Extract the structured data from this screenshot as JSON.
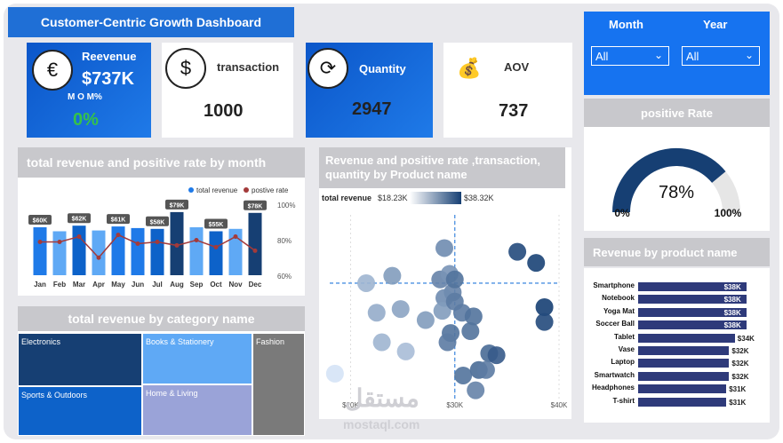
{
  "dashboard": {
    "title": "Customer-Centric Growth Dashboard"
  },
  "kpis": {
    "revenue": {
      "title": "Reevenue",
      "value": "$737K",
      "mom_label": "M O M%",
      "mom_value": "0%"
    },
    "transaction": {
      "title": "transaction",
      "value": "1000"
    },
    "quantity": {
      "title": "Quantity",
      "value": "2947"
    },
    "aov": {
      "title": "AOV",
      "value": "737"
    }
  },
  "slicers": {
    "month": {
      "label": "Month",
      "selected": "All"
    },
    "year": {
      "label": "Year",
      "selected": "All"
    }
  },
  "gauge": {
    "title": "positive Rate",
    "value_label": "78%",
    "min_label": "0%",
    "max_label": "100%",
    "value": 0.78
  },
  "colors": {
    "accent": "#1673f0",
    "dark_blue": "#163f73",
    "mid_blue": "#1f7ae8",
    "bar_navy": "#2e3a7a",
    "line_red": "#a33a3a",
    "green": "#35c24a"
  },
  "icons": {
    "revenue": "euro-icon",
    "transaction": "dollar-coin-icon",
    "quantity": "cycle-icon",
    "aov": "money-growth-icon"
  },
  "watermark": {
    "arabic": "مستقل",
    "latin": "mostaql.com"
  },
  "chart_data": [
    {
      "type": "bar",
      "title": "total revenue and positive rate by month",
      "categories": [
        "Jan",
        "Feb",
        "Mar",
        "Apr",
        "May",
        "Jun",
        "Jul",
        "Aug",
        "Sep",
        "Oct",
        "Nov",
        "Dec"
      ],
      "series": [
        {
          "name": "total revenue",
          "values": [
            60,
            55,
            62,
            56,
            61,
            59,
            58,
            79,
            60,
            55,
            58,
            78
          ],
          "data_labels": [
            "$60K",
            "",
            "$62K",
            "",
            "$61K",
            "",
            "$58K",
            "$79K",
            "",
            "$55K",
            "",
            "$78K"
          ]
        },
        {
          "name": "postive rate",
          "values": [
            79,
            79,
            82,
            70,
            83,
            78,
            79,
            77,
            80,
            76,
            82,
            74
          ]
        }
      ],
      "y2_ticks": [
        "100%",
        "80%",
        "60%"
      ],
      "ylim": [
        0,
        100
      ],
      "y2lim": [
        60,
        100
      ],
      "legend": "top-right"
    },
    {
      "type": "scatter",
      "title": "Revenue and positive rate ,transaction, quantity by Product name",
      "legend_title": "total revenue",
      "legend_min": "$18.23K",
      "legend_max": "$38.32K",
      "x_ticks": [
        "$20K",
        "$30K",
        "$40K"
      ],
      "xlim": [
        18,
        40
      ],
      "ylim": [
        0,
        100
      ],
      "points": [
        {
          "x": 18.5,
          "y": 14,
          "c": 18.3
        },
        {
          "x": 21.5,
          "y": 63,
          "c": 24
        },
        {
          "x": 24,
          "y": 67,
          "c": 27
        },
        {
          "x": 24.8,
          "y": 49,
          "c": 26
        },
        {
          "x": 22.5,
          "y": 47,
          "c": 25
        },
        {
          "x": 23,
          "y": 31,
          "c": 24
        },
        {
          "x": 25.3,
          "y": 26,
          "c": 23
        },
        {
          "x": 27.2,
          "y": 43,
          "c": 27
        },
        {
          "x": 29.8,
          "y": 58,
          "c": 30
        },
        {
          "x": 30.7,
          "y": 47,
          "c": 31
        },
        {
          "x": 28.6,
          "y": 65,
          "c": 30
        },
        {
          "x": 29,
          "y": 55,
          "c": 29
        },
        {
          "x": 29.5,
          "y": 68,
          "c": 28
        },
        {
          "x": 29,
          "y": 82,
          "c": 29
        },
        {
          "x": 28.8,
          "y": 48,
          "c": 27
        },
        {
          "x": 29.6,
          "y": 36,
          "c": 32
        },
        {
          "x": 29.3,
          "y": 31,
          "c": 31
        },
        {
          "x": 30,
          "y": 65,
          "c": 32
        },
        {
          "x": 30,
          "y": 53,
          "c": 31
        },
        {
          "x": 31.5,
          "y": 37,
          "c": 32
        },
        {
          "x": 31.8,
          "y": 45,
          "c": 32
        },
        {
          "x": 32.3,
          "y": 16,
          "c": 33
        },
        {
          "x": 30.8,
          "y": 13,
          "c": 32
        },
        {
          "x": 33.3,
          "y": 25,
          "c": 33
        },
        {
          "x": 34,
          "y": 24,
          "c": 35
        },
        {
          "x": 33,
          "y": 16,
          "c": 31
        },
        {
          "x": 32,
          "y": 5,
          "c": 30
        },
        {
          "x": 36,
          "y": 80,
          "c": 37
        },
        {
          "x": 37.8,
          "y": 74,
          "c": 38
        },
        {
          "x": 38.6,
          "y": 50,
          "c": 38.3
        },
        {
          "x": 38.6,
          "y": 42,
          "c": 37
        }
      ]
    },
    {
      "type": "table",
      "title": "total revenue by category name",
      "categories": [
        "Electronics",
        "Books & Stationery",
        "Fashion",
        "Sports & Outdoors",
        "Home & Living"
      ],
      "colors": [
        "#163f73",
        "#5fa9f5",
        "#7a7a7a",
        "#0d62c9",
        "#9aa3d8"
      ]
    },
    {
      "type": "bar",
      "title": "Revenue by product name",
      "categories": [
        "Smartphone",
        "Notebook",
        "Yoga Mat",
        "Soccer Ball",
        "Tablet",
        "Vase",
        "Laptop",
        "Smartwatch",
        "Headphones",
        "T-shirt"
      ],
      "values": [
        38,
        38,
        38,
        38,
        34,
        32,
        32,
        32,
        31,
        31
      ],
      "labels": [
        "$38K",
        "$38K",
        "$38K",
        "$38K",
        "$34K",
        "$32K",
        "$32K",
        "$32K",
        "$31K",
        "$31K"
      ]
    }
  ]
}
